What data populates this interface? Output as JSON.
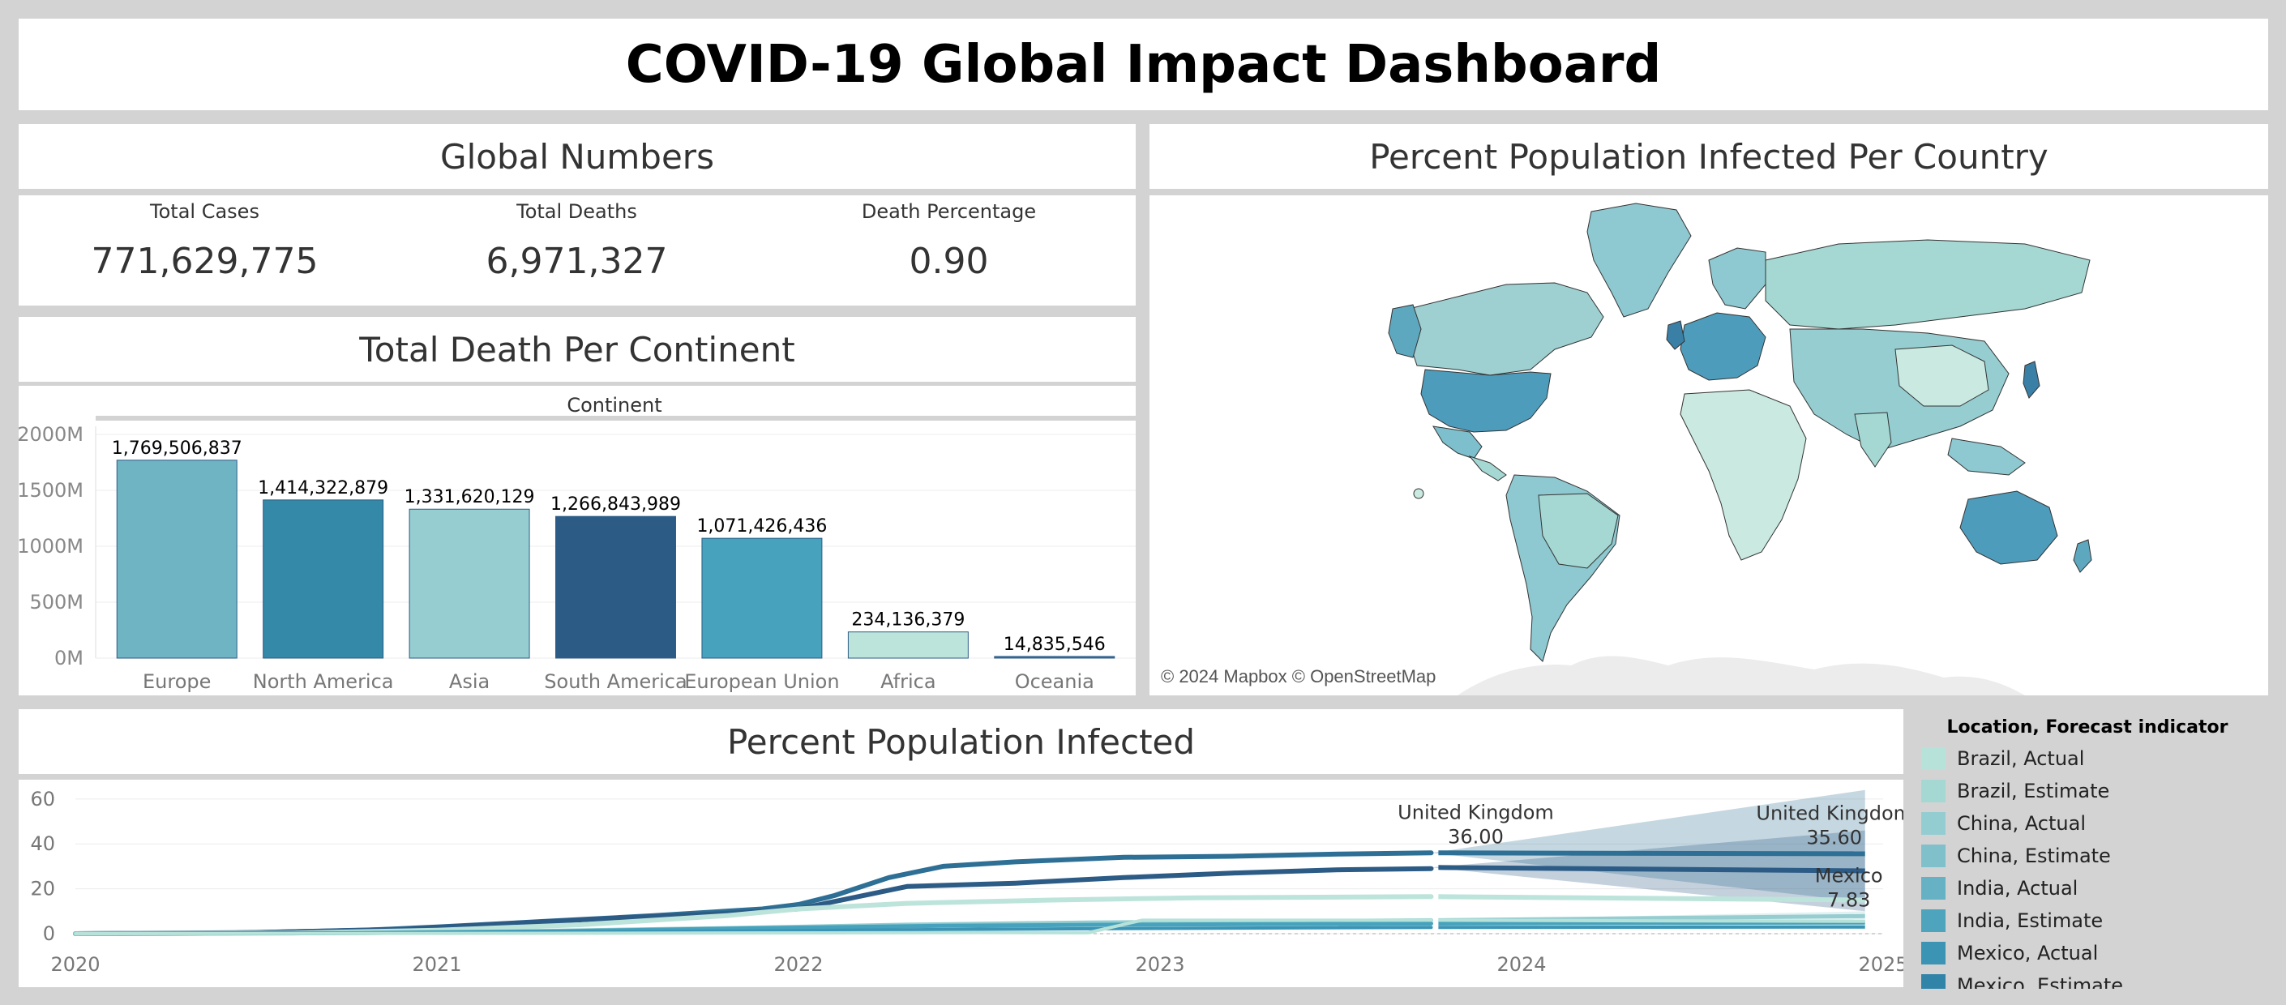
{
  "dashboard": {
    "title": "COVID-19 Global Impact Dashboard"
  },
  "global_numbers": {
    "title": "Global Numbers",
    "kpis": [
      {
        "label": "Total Cases",
        "value": "771,629,775"
      },
      {
        "label": "Total Deaths",
        "value": "6,971,327"
      },
      {
        "label": "Death Percentage",
        "value": "0.90"
      }
    ]
  },
  "death_per_continent": {
    "title": "Total Death Per Continent"
  },
  "map": {
    "title": "Percent Population Infected Per Country",
    "attribution": "© 2024 Mapbox © OpenStreetMap"
  },
  "infected_over_time": {
    "title": "Percent Population Infected"
  },
  "legend": {
    "title": "Location, Forecast indicator",
    "items": [
      {
        "label": "Brazil, Actual",
        "color": "#b7e2d9"
      },
      {
        "label": "Brazil, Estimate",
        "color": "#a5d8d3"
      },
      {
        "label": "China, Actual",
        "color": "#94cdd1"
      },
      {
        "label": "China, Estimate",
        "color": "#80c0cb"
      },
      {
        "label": "India, Actual",
        "color": "#67b1c4"
      },
      {
        "label": "India, Estimate",
        "color": "#4ea3bd"
      },
      {
        "label": "Mexico, Actual",
        "color": "#3b94b4"
      },
      {
        "label": "Mexico, Estimate",
        "color": "#2f84a8"
      }
    ]
  },
  "chart_data": [
    {
      "type": "bar",
      "title": "Total Death Per Continent",
      "xlabel": "Continent",
      "ylabel": "",
      "categories": [
        "Europe",
        "North America",
        "Asia",
        "South America",
        "European Union",
        "Africa",
        "Oceania"
      ],
      "values": [
        1769506837,
        1414322879,
        1331620129,
        1266843989,
        1071426436,
        234136379,
        14835546
      ],
      "value_labels": [
        "1,769,506,837",
        "1,414,322,879",
        "1,331,620,129",
        "1,266,843,989",
        "1,071,426,436",
        "234,136,379",
        "14,835,546"
      ],
      "colors": [
        "#6eb4c3",
        "#3488a8",
        "#95cdd0",
        "#2c5b86",
        "#47a3bd",
        "#bde4da",
        "#3a6da1"
      ],
      "yticks": [
        {
          "value": 0,
          "label": "0M"
        },
        {
          "value": 500000000,
          "label": "500M"
        },
        {
          "value": 1000000000,
          "label": "1000M"
        },
        {
          "value": 1500000000,
          "label": "1500M"
        },
        {
          "value": 2000000000,
          "label": "2000M"
        }
      ],
      "ylim": [
        0,
        2000000000
      ],
      "grid": true
    },
    {
      "type": "line",
      "title": "Percent Population Infected",
      "xlim": [
        2020,
        2025
      ],
      "ylim": [
        0,
        65
      ],
      "xticks": [
        "2020",
        "2021",
        "2022",
        "2023",
        "2024",
        "2025"
      ],
      "yticks": [
        0,
        20,
        40,
        60
      ],
      "forecast_start": 2023.75,
      "grid": true,
      "series": [
        {
          "color": "#2e6f95",
          "width": 6,
          "actual": [
            [
              2020.0,
              0
            ],
            [
              2020.4,
              0.2
            ],
            [
              2020.8,
              1.5
            ],
            [
              2021.0,
              3
            ],
            [
              2021.3,
              5.5
            ],
            [
              2021.6,
              8
            ],
            [
              2021.9,
              11
            ],
            [
              2022.0,
              13
            ],
            [
              2022.1,
              17
            ],
            [
              2022.25,
              25
            ],
            [
              2022.4,
              30
            ],
            [
              2022.6,
              32
            ],
            [
              2022.9,
              34
            ],
            [
              2023.2,
              34.5
            ],
            [
              2023.5,
              35.5
            ],
            [
              2023.75,
              36
            ]
          ],
          "forecast": [
            [
              2023.75,
              36
            ],
            [
              2024.95,
              35.6
            ]
          ],
          "band": [
            [
              2023.75,
              36,
              36
            ],
            [
              2024.95,
              64,
              14
            ]
          ]
        },
        {
          "color": "#2c5b86",
          "width": 6,
          "actual": [
            [
              2020.0,
              0
            ],
            [
              2020.5,
              0.5
            ],
            [
              2020.9,
              2
            ],
            [
              2021.2,
              4.5
            ],
            [
              2021.5,
              7
            ],
            [
              2021.8,
              9
            ],
            [
              2022.0,
              11
            ],
            [
              2022.15,
              16
            ],
            [
              2022.3,
              21
            ],
            [
              2022.6,
              22.5
            ],
            [
              2022.9,
              25
            ],
            [
              2023.2,
              27
            ],
            [
              2023.5,
              28.5
            ],
            [
              2023.75,
              29
            ]
          ],
          "forecast": [
            [
              2023.75,
              29.5
            ],
            [
              2024.95,
              28
            ]
          ],
          "band": [
            [
              2023.75,
              29.5,
              29.5
            ],
            [
              2024.95,
              46,
              10
            ]
          ]
        },
        {
          "color": "#bde4da",
          "width": 6,
          "actual": [
            [
              2020.0,
              0
            ],
            [
              2020.6,
              0.3
            ],
            [
              2021.0,
              1.5
            ],
            [
              2021.4,
              4
            ],
            [
              2021.8,
              8
            ],
            [
              2022.0,
              11
            ],
            [
              2022.3,
              13.5
            ],
            [
              2022.7,
              15
            ],
            [
              2023.1,
              16
            ],
            [
              2023.75,
              16.5
            ]
          ],
          "forecast": [
            [
              2023.75,
              16.5
            ],
            [
              2024.95,
              15
            ]
          ],
          "band": null
        },
        {
          "color": "#95cdd0",
          "width": 5,
          "actual": [
            [
              2020.0,
              0
            ],
            [
              2020.7,
              0.2
            ],
            [
              2021.2,
              1
            ],
            [
              2021.8,
              2.5
            ],
            [
              2022.3,
              4
            ],
            [
              2022.8,
              5
            ],
            [
              2023.3,
              5.5
            ],
            [
              2023.75,
              6
            ]
          ],
          "forecast": [
            [
              2023.75,
              6
            ],
            [
              2024.95,
              7.83
            ]
          ],
          "band": [
            [
              2023.75,
              6,
              6
            ],
            [
              2024.95,
              10,
              2
            ]
          ]
        },
        {
          "color": "#47a3bd",
          "width": 5,
          "actual": [
            [
              2020.0,
              0
            ],
            [
              2020.8,
              0.3
            ],
            [
              2021.3,
              1
            ],
            [
              2021.9,
              2.5
            ],
            [
              2022.4,
              3.5
            ],
            [
              2022.9,
              4
            ],
            [
              2023.4,
              4.3
            ],
            [
              2023.75,
              4.5
            ]
          ],
          "forecast": [
            [
              2023.75,
              4.5
            ],
            [
              2024.95,
              5
            ]
          ],
          "band": null
        },
        {
          "color": "#3b94b4",
          "width": 4,
          "actual": [
            [
              2020.0,
              0
            ],
            [
              2021.0,
              0.5
            ],
            [
              2021.8,
              1.2
            ],
            [
              2022.5,
              2
            ],
            [
              2023.2,
              2.5
            ],
            [
              2023.75,
              2.8
            ]
          ],
          "forecast": [
            [
              2023.75,
              2.8
            ],
            [
              2024.95,
              3
            ]
          ],
          "band": null
        },
        {
          "color": "#b7e2d9",
          "width": 4,
          "actual": [
            [
              2020.0,
              0
            ],
            [
              2021.5,
              0.2
            ],
            [
              2022.5,
              0.5
            ],
            [
              2022.8,
              0.4
            ],
            [
              2022.95,
              6
            ],
            [
              2023.75,
              6
            ]
          ],
          "forecast": [
            [
              2023.75,
              6
            ],
            [
              2024.95,
              5.5
            ]
          ],
          "band": null
        }
      ],
      "annotations": [
        {
          "text": "United Kingdom",
          "value": "36.00",
          "x": 2023.75,
          "y": 36
        },
        {
          "text": "United Kingdom",
          "value": "35.60",
          "x": 2024.95,
          "y": 35.6
        },
        {
          "text": "Mexico",
          "value": "7.83",
          "x": 2024.95,
          "y": 7.83
        }
      ]
    }
  ]
}
